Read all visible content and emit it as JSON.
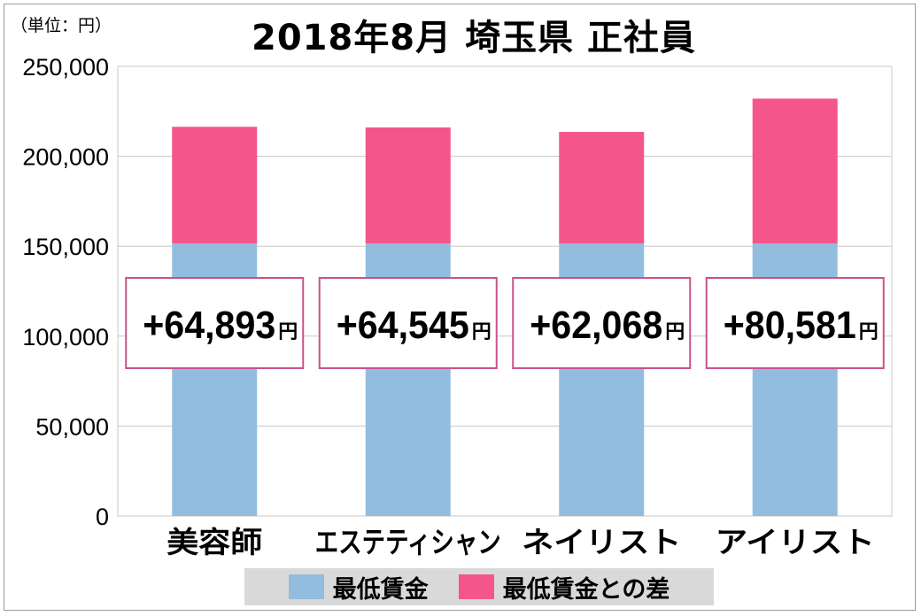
{
  "chart_data": {
    "type": "bar",
    "stacked": true,
    "title": "2018年8月 埼玉県 正社員",
    "unit_label": "（単位：円）",
    "categories": [
      "美容師",
      "エステティシャン",
      "ネイリスト",
      "アイリスト"
    ],
    "series": [
      {
        "name": "最低賃金",
        "color": "#92bddf",
        "values": [
          151500,
          151500,
          151500,
          151500
        ]
      },
      {
        "name": "最低賃金との差",
        "color": "#f4558a",
        "values": [
          64893,
          64545,
          62068,
          80581
        ]
      }
    ],
    "data_labels": [
      "+64,893",
      "+64,545",
      "+62,068",
      "+80,581"
    ],
    "data_label_unit": "円",
    "yticks": [
      "0",
      "50,000",
      "100,000",
      "150,000",
      "200,000",
      "250,000"
    ],
    "ylim": [
      0,
      250000
    ],
    "grid": true,
    "legend_position": "bottom"
  }
}
